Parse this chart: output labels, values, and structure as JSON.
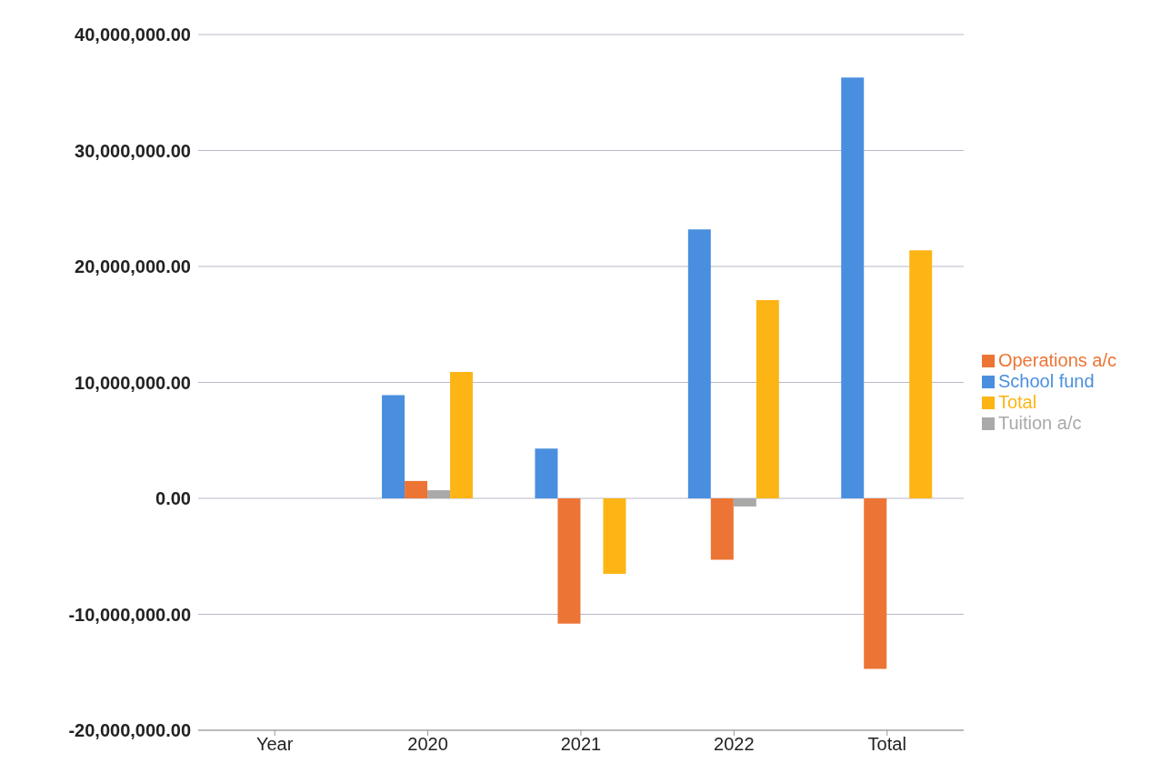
{
  "chart_data": {
    "type": "bar",
    "categories": [
      "Year",
      "2020",
      "2021",
      "2022",
      "Total"
    ],
    "series": [
      {
        "name": "School fund",
        "color": "#4a8fdf",
        "values": [
          null,
          8900000,
          4300000,
          23200000,
          36300000
        ]
      },
      {
        "name": "Operations a/c",
        "color": "#ec7535",
        "values": [
          null,
          1500000,
          -10800000,
          -5300000,
          -14700000
        ]
      },
      {
        "name": "Tuition a/c",
        "color": "#a9a9a9",
        "values": [
          null,
          700000,
          0,
          -700000,
          0
        ]
      },
      {
        "name": "Total",
        "color": "#fdb515",
        "values": [
          null,
          10900000,
          -6500000,
          17100000,
          21400000
        ]
      }
    ],
    "ylim": [
      -20000000,
      40000000
    ],
    "yticks": [
      {
        "value": -20000000,
        "label": "-20,000,000.00"
      },
      {
        "value": -10000000,
        "label": "-10,000,000.00"
      },
      {
        "value": 0,
        "label": "0.00"
      },
      {
        "value": 10000000,
        "label": "10,000,000.00"
      },
      {
        "value": 20000000,
        "label": "20,000,000.00"
      },
      {
        "value": 30000000,
        "label": "30,000,000.00"
      },
      {
        "value": 40000000,
        "label": "40,000,000.00"
      }
    ],
    "grid": "y",
    "legend": "right"
  }
}
